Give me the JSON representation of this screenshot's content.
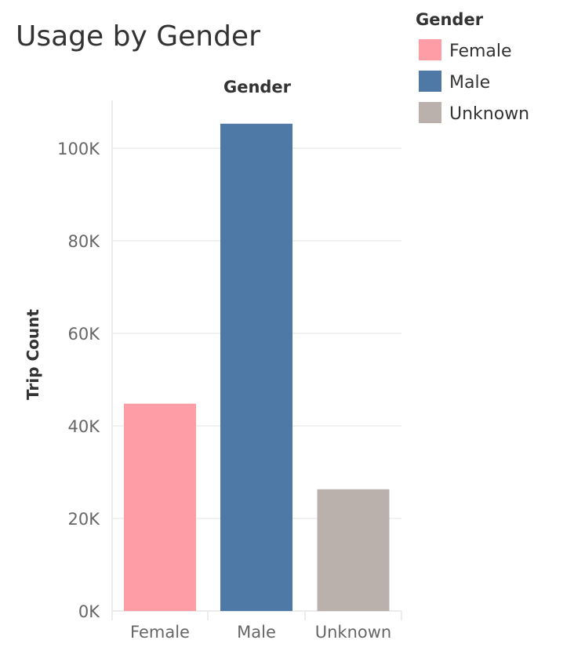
{
  "chart_data": {
    "type": "bar",
    "title": "Usage by Gender",
    "column_header": "Gender",
    "categories": [
      "Female",
      "Male",
      "Unknown"
    ],
    "values": [
      44800,
      105300,
      26300
    ],
    "ylabel": "Trip Count",
    "xlabel": "",
    "ylim": [
      0,
      110000
    ],
    "y_ticks": [
      0,
      20000,
      40000,
      60000,
      80000,
      100000
    ],
    "y_tick_labels": [
      "0K",
      "20K",
      "40K",
      "60K",
      "80K",
      "100K"
    ],
    "colors": [
      "#ff9da7",
      "#4e79a7",
      "#bab0ac"
    ],
    "grid": true,
    "legend": {
      "title": "Gender",
      "placement": "top-right",
      "entries": [
        {
          "label": "Female",
          "color": "#ff9da7"
        },
        {
          "label": "Male",
          "color": "#4e79a7"
        },
        {
          "label": "Unknown",
          "color": "#bab0ac"
        }
      ]
    }
  }
}
